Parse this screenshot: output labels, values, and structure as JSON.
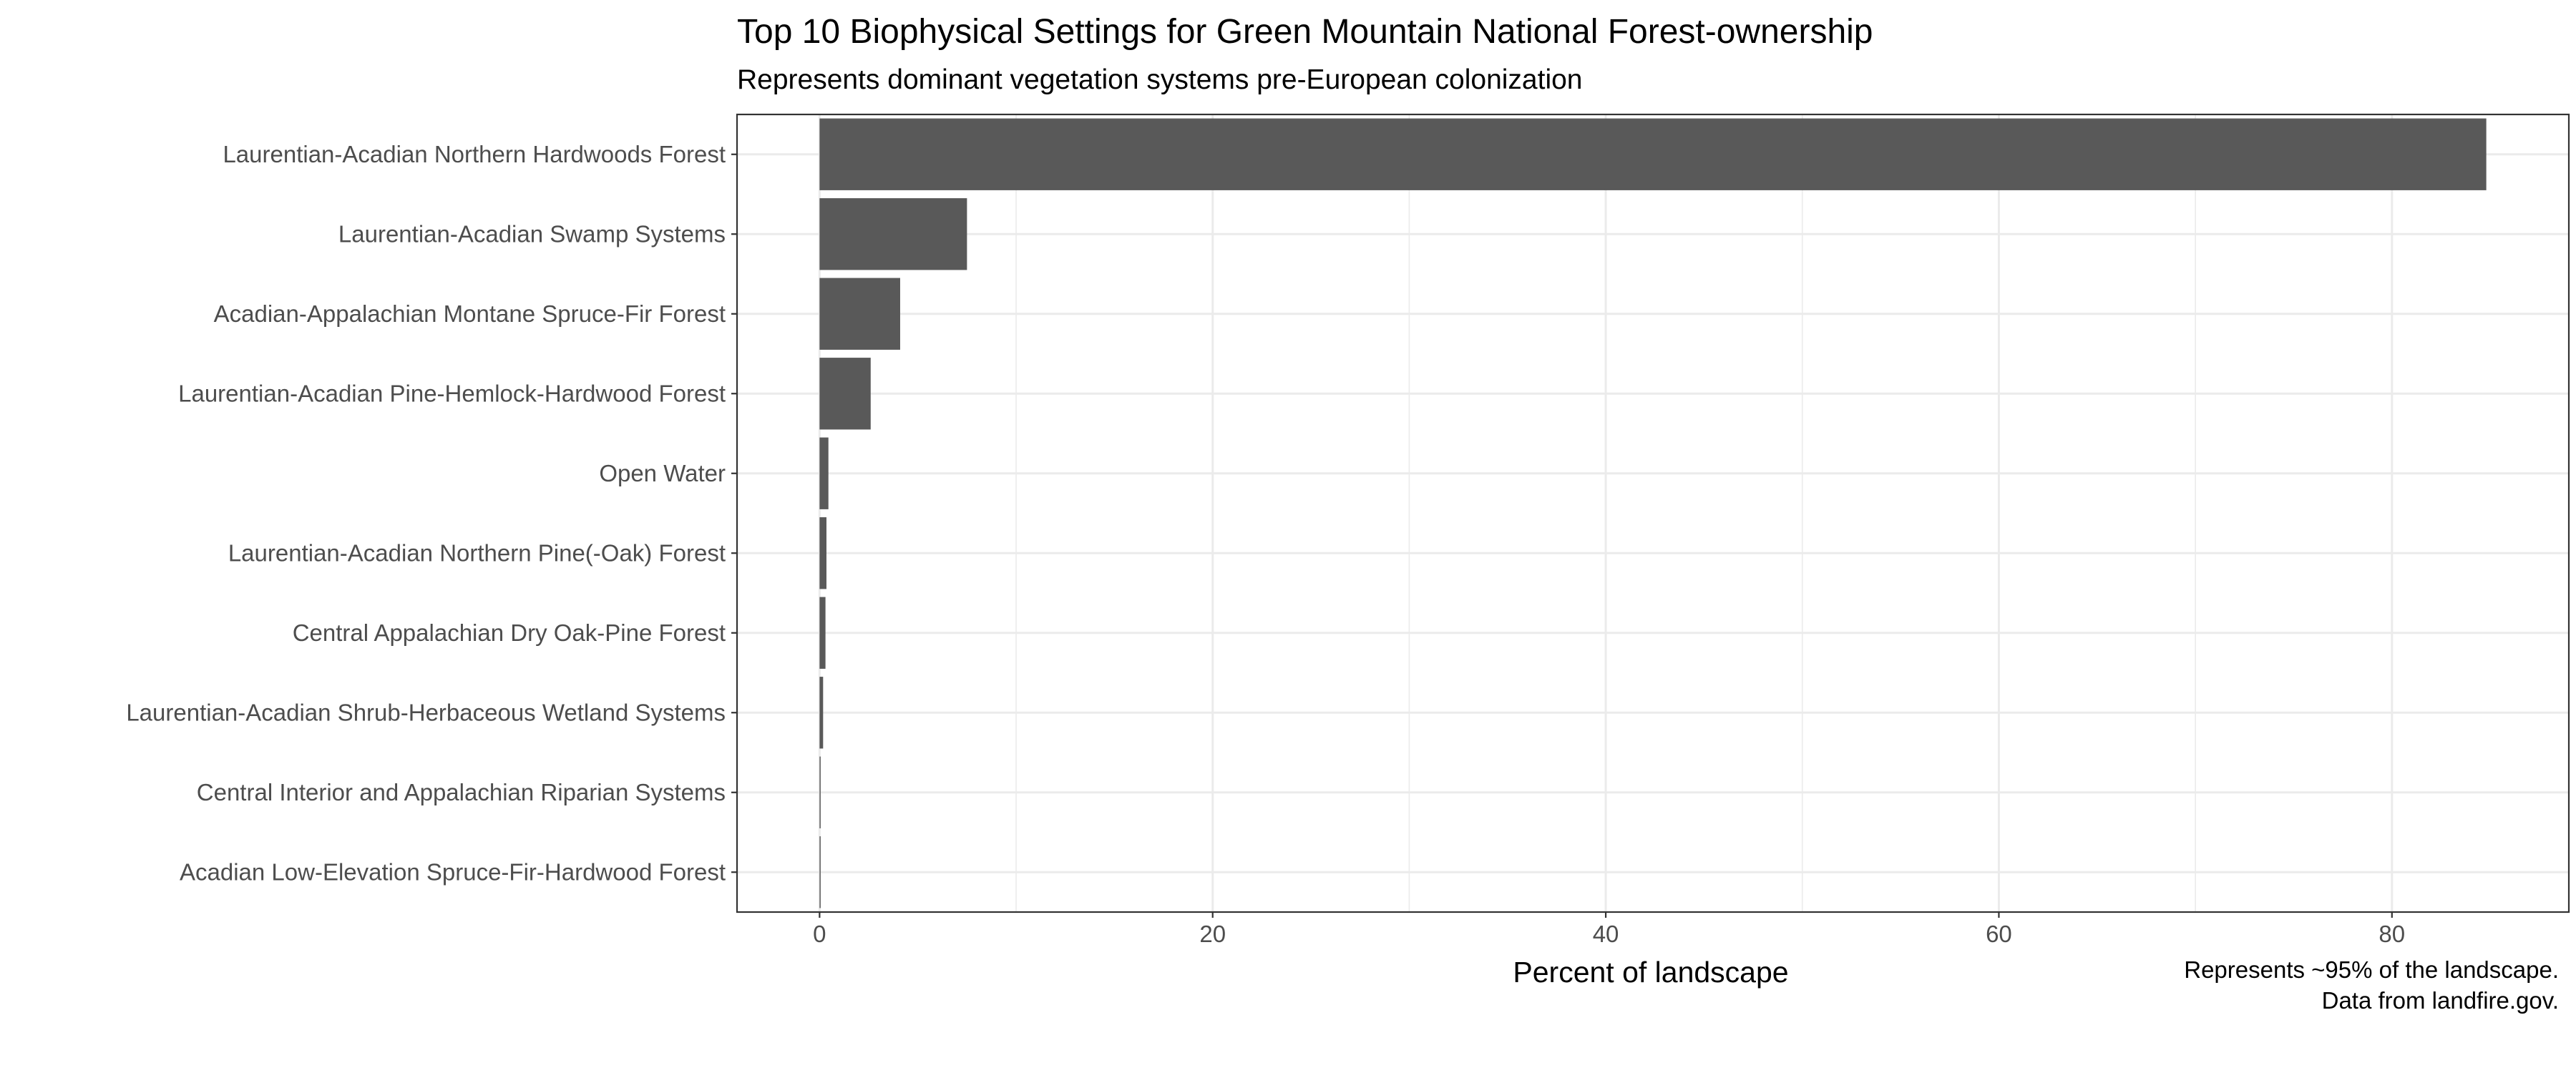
{
  "chart_data": {
    "type": "bar",
    "orientation": "horizontal",
    "title": "Top 10 Biophysical Settings for Green Mountain National Forest-ownership",
    "subtitle": "Represents dominant vegetation systems pre-European colonization",
    "xlabel": "Percent of landscape",
    "ylabel": "",
    "caption": [
      "Represents ~95% of the landscape.",
      "Data from landfire.gov."
    ],
    "categories": [
      "Laurentian-Acadian Northern Hardwoods Forest",
      "Laurentian-Acadian Swamp Systems",
      "Acadian-Appalachian Montane Spruce-Fir Forest",
      "Laurentian-Acadian Pine-Hemlock-Hardwood Forest",
      "Open Water",
      "Laurentian-Acadian Northern Pine(-Oak) Forest",
      "Central Appalachian Dry Oak-Pine Forest",
      "Laurentian-Acadian Shrub-Herbaceous Wetland Systems",
      "Central Interior and Appalachian Riparian Systems",
      "Acadian Low-Elevation Spruce-Fir-Hardwood Forest"
    ],
    "values": [
      84.8,
      7.5,
      4.1,
      2.6,
      0.45,
      0.35,
      0.3,
      0.18,
      0.05,
      0.03
    ],
    "xlim": [
      -4.2,
      89.0
    ],
    "xticks": [
      0,
      20,
      40,
      60,
      80
    ],
    "grid": true,
    "colors": {
      "bar": "#595959",
      "grid": "#ebebeb",
      "panel_border": "#333333",
      "text": "#4d4d4d"
    }
  }
}
